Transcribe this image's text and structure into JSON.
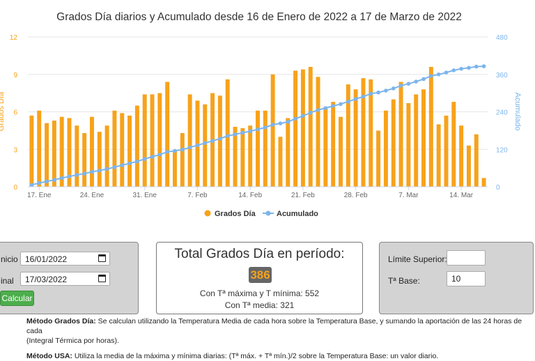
{
  "chart_data": {
    "type": "bar+line",
    "title": "Grados Día diarios y Acumulado desde 16 de Enero de 2022 a 17 de Marzo de 2022",
    "ylabel_left": "Grados Día",
    "ylabel_right": "Acumulado",
    "y_left_ticks": [
      "0",
      "3",
      "6",
      "9",
      "12"
    ],
    "y_right_ticks": [
      "0",
      "120",
      "240",
      "360",
      "480"
    ],
    "ylim_left": [
      0,
      12
    ],
    "ylim_right": [
      0,
      480
    ],
    "x_tick_labels": [
      "17. Ene",
      "24. Ene",
      "31. Ene",
      "7. Feb",
      "14. Feb",
      "21. Feb",
      "28. Feb",
      "7. Mar",
      "14. Mar"
    ],
    "dates": [
      "2022-01-16",
      "2022-01-17",
      "2022-01-18",
      "2022-01-19",
      "2022-01-20",
      "2022-01-21",
      "2022-01-22",
      "2022-01-23",
      "2022-01-24",
      "2022-01-25",
      "2022-01-26",
      "2022-01-27",
      "2022-01-28",
      "2022-01-29",
      "2022-01-30",
      "2022-01-31",
      "2022-02-01",
      "2022-02-02",
      "2022-02-03",
      "2022-02-04",
      "2022-02-05",
      "2022-02-06",
      "2022-02-07",
      "2022-02-08",
      "2022-02-09",
      "2022-02-10",
      "2022-02-11",
      "2022-02-12",
      "2022-02-13",
      "2022-02-14",
      "2022-02-15",
      "2022-02-16",
      "2022-02-17",
      "2022-02-18",
      "2022-02-19",
      "2022-02-20",
      "2022-02-21",
      "2022-02-22",
      "2022-02-23",
      "2022-02-24",
      "2022-02-25",
      "2022-02-26",
      "2022-02-27",
      "2022-02-28",
      "2022-03-01",
      "2022-03-02",
      "2022-03-03",
      "2022-03-04",
      "2022-03-05",
      "2022-03-06",
      "2022-03-07",
      "2022-03-08",
      "2022-03-09",
      "2022-03-10",
      "2022-03-11",
      "2022-03-12",
      "2022-03-13",
      "2022-03-14",
      "2022-03-15",
      "2022-03-16",
      "2022-03-17"
    ],
    "series": [
      {
        "name": "Grados Día",
        "type": "bar",
        "color": "#f7a21b",
        "values": [
          5.7,
          6.1,
          5.1,
          5.3,
          5.6,
          5.5,
          4.9,
          4.3,
          5.6,
          4.4,
          4.9,
          6.1,
          5.9,
          5.7,
          6.5,
          7.4,
          7.4,
          7.5,
          8.4,
          2.9,
          4.3,
          7.4,
          6.9,
          6.6,
          7.5,
          7.3,
          8.6,
          4.8,
          4.7,
          4.9,
          6.1,
          6.1,
          9.0,
          4.0,
          5.5,
          9.3,
          9.4,
          9.6,
          8.8,
          6.4,
          6.8,
          5.6,
          8.2,
          7.8,
          8.7,
          8.6,
          4.5,
          6.1,
          7.0,
          8.4,
          6.7,
          7.4,
          7.8,
          9.6,
          5.0,
          5.7,
          6.8,
          4.9,
          3.3,
          4.2,
          0.7
        ]
      },
      {
        "name": "Acumulado",
        "type": "line",
        "color": "#7cb5ec",
        "values": [
          6,
          12,
          17,
          22,
          28,
          33,
          38,
          42,
          48,
          52,
          57,
          63,
          69,
          75,
          81,
          89,
          96,
          103,
          112,
          115,
          119,
          126,
          133,
          140,
          147,
          154,
          163,
          168,
          173,
          178,
          184,
          190,
          199,
          203,
          208,
          218,
          227,
          237,
          246,
          252,
          259,
          265,
          273,
          281,
          289,
          298,
          302,
          308,
          315,
          324,
          330,
          337,
          345,
          355,
          360,
          366,
          373,
          378,
          381,
          385,
          386
        ]
      }
    ],
    "legend_position": "bottom-center",
    "grid": true
  },
  "form": {
    "start_label": "nicio",
    "start_value": "16/01/2022",
    "end_label": "inal",
    "end_value": "17/03/2022",
    "calc_button": "Calcular"
  },
  "total": {
    "title": "Total Grados Día en período:",
    "value": "386",
    "line1": "Con Tª máxima y T mínima: 552",
    "line2": "Con Tª media: 321"
  },
  "limits": {
    "upper_label": "Límite Superior:",
    "upper_value": "",
    "base_label": "Tª Base:",
    "base_value": "10"
  },
  "notes": {
    "note1_bold": "Método Grados Día:",
    "note1_text": " Se calculan utilizando la Temperatura Media de cada hora sobre la Temperatura Base, y sumando la aportación de las 24 horas de cada",
    "note1_cont": "(Integral Térmica por horas).",
    "note2_bold": "Método USA:",
    "note2_text": " Utiliza la media de la máxima y mínima diarias: (Tª máx. + Tª mín.)/2 sobre la Temperatura Base: un valor diario."
  }
}
